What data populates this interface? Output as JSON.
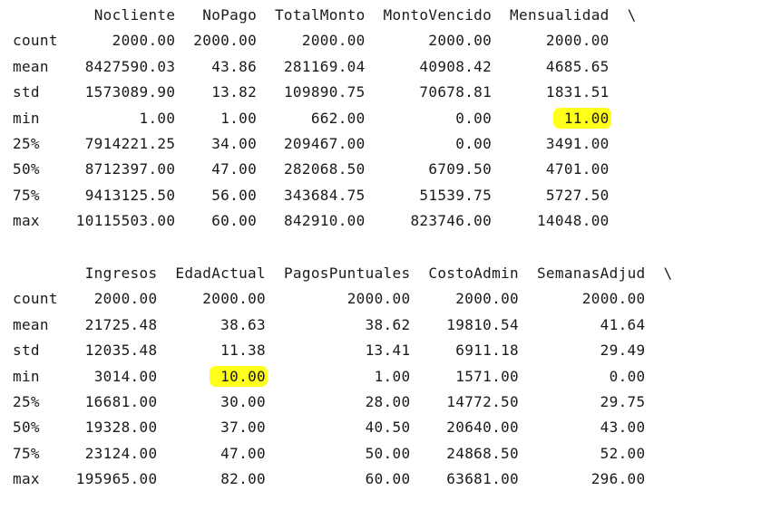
{
  "tables": [
    {
      "columns": [
        "Nocliente",
        "NoPago",
        "TotalMonto",
        "MontoVencido",
        "Mensualidad"
      ],
      "continuation": "\\",
      "rows": [
        {
          "stat": "count",
          "values": [
            "2000.00",
            "2000.00",
            "2000.00",
            "2000.00",
            "2000.00"
          ]
        },
        {
          "stat": "mean",
          "values": [
            "8427590.03",
            "43.86",
            "281169.04",
            "40908.42",
            "4685.65"
          ]
        },
        {
          "stat": "std",
          "values": [
            "1573089.90",
            "13.82",
            "109890.75",
            "70678.81",
            "1831.51"
          ]
        },
        {
          "stat": "min",
          "values": [
            "1.00",
            "1.00",
            "662.00",
            "0.00",
            "11.00"
          ]
        },
        {
          "stat": "25%",
          "values": [
            "7914221.25",
            "34.00",
            "209467.00",
            "0.00",
            "3491.00"
          ]
        },
        {
          "stat": "50%",
          "values": [
            "8712397.00",
            "47.00",
            "282068.50",
            "6709.50",
            "4701.00"
          ]
        },
        {
          "stat": "75%",
          "values": [
            "9413125.50",
            "56.00",
            "343684.75",
            "51539.75",
            "5727.50"
          ]
        },
        {
          "stat": "max",
          "values": [
            "10115503.00",
            "60.00",
            "842910.00",
            "823746.00",
            "14048.00"
          ]
        }
      ]
    },
    {
      "columns": [
        "Ingresos",
        "EdadActual",
        "PagosPuntuales",
        "CostoAdmin",
        "SemanasAdjud"
      ],
      "continuation": "\\",
      "rows": [
        {
          "stat": "count",
          "values": [
            "2000.00",
            "2000.00",
            "2000.00",
            "2000.00",
            "2000.00"
          ]
        },
        {
          "stat": "mean",
          "values": [
            "21725.48",
            "38.63",
            "38.62",
            "19810.54",
            "41.64"
          ]
        },
        {
          "stat": "std",
          "values": [
            "12035.48",
            "11.38",
            "13.41",
            "6911.18",
            "29.49"
          ]
        },
        {
          "stat": "min",
          "values": [
            "3014.00",
            "10.00",
            "1.00",
            "1571.00",
            "0.00"
          ]
        },
        {
          "stat": "25%",
          "values": [
            "16681.00",
            "30.00",
            "28.00",
            "14772.50",
            "29.75"
          ]
        },
        {
          "stat": "50%",
          "values": [
            "19328.00",
            "37.00",
            "40.50",
            "20640.00",
            "43.00"
          ]
        },
        {
          "stat": "75%",
          "values": [
            "23124.00",
            "47.00",
            "50.00",
            "24868.50",
            "52.00"
          ]
        },
        {
          "stat": "max",
          "values": [
            "195965.00",
            "82.00",
            "60.00",
            "63681.00",
            "296.00"
          ]
        }
      ]
    }
  ],
  "highlights": [
    {
      "table": 0,
      "row": 3,
      "col": 4,
      "color": "#ffff1a"
    },
    {
      "table": 1,
      "row": 3,
      "col": 1,
      "color": "#ffff1a"
    }
  ]
}
